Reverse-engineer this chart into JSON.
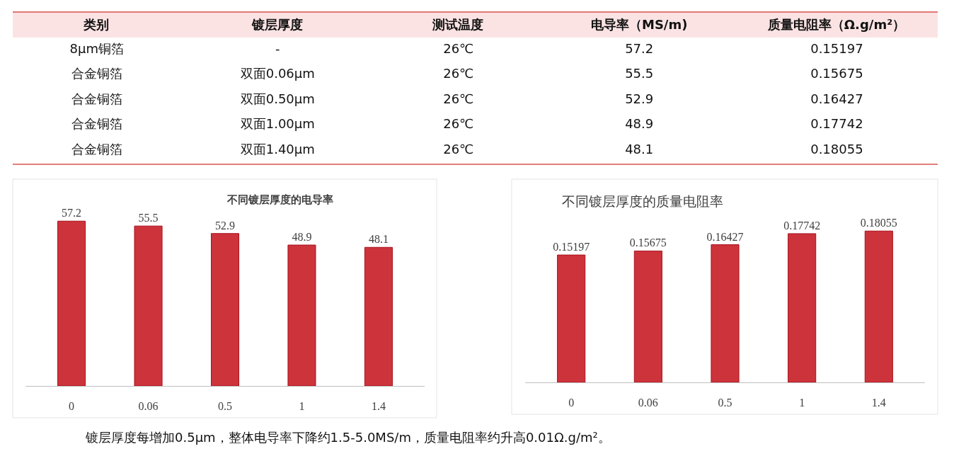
{
  "chart_data": [
    {
      "type": "other",
      "categories": [
        "类别",
        "镀层厚度",
        "测试温度",
        "电导率（MS/m)",
        "质量电阻率（Ω.g/m²）"
      ],
      "cell_labels": [
        [
          "8μm铜箔",
          "-",
          "26℃",
          "57.2",
          "0.15197"
        ],
        [
          "合金铜箔",
          "双面0.06μm",
          "26℃",
          "55.5",
          "0.15675"
        ],
        [
          "合金铜箔",
          "双面0.50μm",
          "26℃",
          "52.9",
          "0.16427"
        ],
        [
          "合金铜箔",
          "双面1.00μm",
          "26℃",
          "48.9",
          "0.17742"
        ],
        [
          "合金铜箔",
          "双面1.40μm",
          "26℃",
          "48.1",
          "0.18055"
        ]
      ]
    },
    {
      "type": "bar",
      "title": "不同镀层厚度的电导率",
      "categories": [
        "0",
        "0.06",
        "0.5",
        "1",
        "1.4"
      ],
      "values": [
        57.2,
        55.5,
        52.9,
        48.9,
        48.1
      ],
      "color": "#cc333b",
      "data_labels": true,
      "tick_labels": "x"
    },
    {
      "type": "bar",
      "title": "不同镀层厚度的质量电阻率",
      "categories": [
        "0",
        "0.06",
        "0.5",
        "1",
        "1.4"
      ],
      "values": [
        0.15197,
        0.15675,
        0.16427,
        0.17742,
        0.18055
      ],
      "color": "#cc333b",
      "data_labels": true,
      "tick_labels": "x",
      "annotations": [
        "镀层厚度每增加0.5μm，整体电导率下降约1.5-5.0MS/m，质量电阻率约升高0.01Ω.g/m²。"
      ]
    }
  ]
}
